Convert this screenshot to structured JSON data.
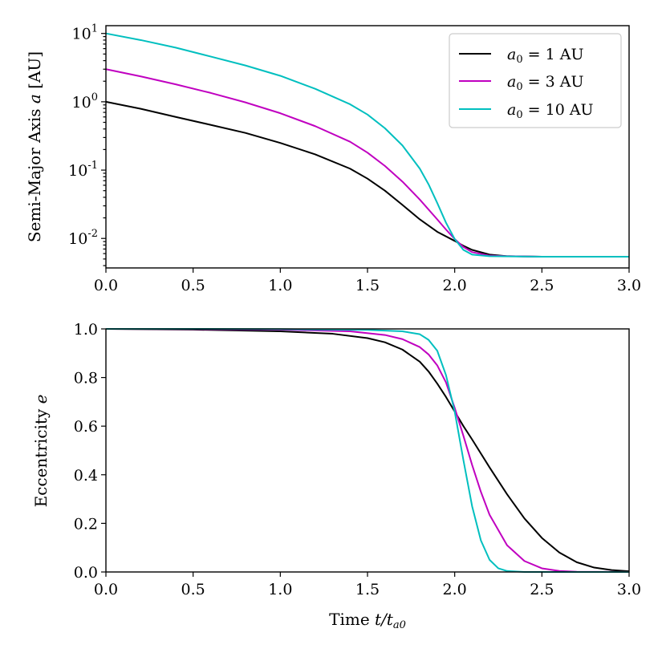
{
  "chart_data": [
    {
      "type": "line",
      "yscale": "log",
      "xlabel": "Time t/t_a0",
      "ylabel": "Semi-Major Axis a [AU]",
      "xlim": [
        0,
        3
      ],
      "ylim": [
        0.0037,
        13
      ],
      "xticks": [
        0.0,
        0.5,
        1.0,
        1.5,
        2.0,
        2.5,
        3.0
      ],
      "xtick_labels": [
        "0.0",
        "0.5",
        "1.0",
        "1.5",
        "2.0",
        "2.5",
        "3.0"
      ],
      "yticks": [
        10,
        1,
        0.1,
        0.01
      ],
      "ytick_base": [
        "10",
        "10",
        "10",
        "10"
      ],
      "ytick_exp": [
        "1",
        "0",
        "-1",
        "-2"
      ],
      "legend_position": "top-right",
      "series": [
        {
          "name": "a0 = 1 AU",
          "legend_var": "a",
          "legend_sub": "0",
          "legend_rest": " = 1 AU",
          "color": "#000000",
          "x": [
            0,
            0.2,
            0.4,
            0.6,
            0.8,
            1.0,
            1.2,
            1.4,
            1.5,
            1.6,
            1.7,
            1.8,
            1.9,
            2.0,
            2.05,
            2.1,
            2.2,
            2.3,
            2.5,
            3.0
          ],
          "y": [
            1.0,
            0.79,
            0.6,
            0.46,
            0.35,
            0.25,
            0.17,
            0.105,
            0.075,
            0.05,
            0.031,
            0.019,
            0.0125,
            0.0092,
            0.0078,
            0.0068,
            0.0058,
            0.0055,
            0.0054,
            0.0054
          ]
        },
        {
          "name": "a0 = 3 AU",
          "legend_var": "a",
          "legend_sub": "0",
          "legend_rest": " = 3 AU",
          "color": "#c000c0",
          "x": [
            0,
            0.2,
            0.4,
            0.6,
            0.8,
            1.0,
            1.2,
            1.4,
            1.5,
            1.6,
            1.7,
            1.8,
            1.9,
            1.95,
            2.0,
            2.05,
            2.1,
            2.2,
            2.3,
            2.5,
            3.0
          ],
          "y": [
            3.0,
            2.35,
            1.8,
            1.35,
            0.98,
            0.68,
            0.44,
            0.26,
            0.18,
            0.115,
            0.068,
            0.037,
            0.019,
            0.0135,
            0.0098,
            0.0075,
            0.0063,
            0.0056,
            0.0055,
            0.0054,
            0.0054
          ]
        },
        {
          "name": "a0 = 10 AU",
          "legend_var": "a",
          "legend_sub": "0",
          "legend_rest": " = 10 AU",
          "color": "#00bfbf",
          "x": [
            0,
            0.2,
            0.4,
            0.6,
            0.8,
            1.0,
            1.2,
            1.4,
            1.5,
            1.6,
            1.7,
            1.8,
            1.85,
            1.9,
            1.95,
            2.0,
            2.05,
            2.1,
            2.2,
            2.5,
            3.0
          ],
          "y": [
            10.0,
            8.0,
            6.2,
            4.6,
            3.4,
            2.4,
            1.55,
            0.92,
            0.65,
            0.41,
            0.23,
            0.105,
            0.062,
            0.033,
            0.017,
            0.0098,
            0.0068,
            0.0058,
            0.0055,
            0.0054,
            0.0054
          ]
        }
      ]
    },
    {
      "type": "line",
      "yscale": "linear",
      "xlabel": "Time t/t_a0",
      "ylabel": "Eccentricity e",
      "xlim": [
        0,
        3
      ],
      "ylim": [
        0,
        1
      ],
      "xticks": [
        0.0,
        0.5,
        1.0,
        1.5,
        2.0,
        2.5,
        3.0
      ],
      "xtick_labels": [
        "0.0",
        "0.5",
        "1.0",
        "1.5",
        "2.0",
        "2.5",
        "3.0"
      ],
      "yticks": [
        0.0,
        0.2,
        0.4,
        0.6,
        0.8,
        1.0
      ],
      "ytick_labels": [
        "0.0",
        "0.2",
        "0.4",
        "0.6",
        "0.8",
        "1.0"
      ],
      "series": [
        {
          "name": "a0 = 1 AU",
          "color": "#000000",
          "x": [
            0,
            0.5,
            1.0,
            1.3,
            1.5,
            1.6,
            1.7,
            1.8,
            1.85,
            1.9,
            1.95,
            2.0,
            2.05,
            2.1,
            2.2,
            2.3,
            2.4,
            2.5,
            2.6,
            2.7,
            2.8,
            2.9,
            3.0
          ],
          "y": [
            1.0,
            0.997,
            0.99,
            0.98,
            0.962,
            0.945,
            0.915,
            0.865,
            0.825,
            0.775,
            0.72,
            0.66,
            0.6,
            0.545,
            0.43,
            0.32,
            0.22,
            0.14,
            0.08,
            0.04,
            0.018,
            0.008,
            0.003
          ]
        },
        {
          "name": "a0 = 3 AU",
          "color": "#c000c0",
          "x": [
            0,
            0.5,
            1.0,
            1.4,
            1.6,
            1.7,
            1.8,
            1.85,
            1.9,
            1.95,
            2.0,
            2.05,
            2.1,
            2.15,
            2.2,
            2.3,
            2.4,
            2.5,
            2.6,
            2.7,
            3.0
          ],
          "y": [
            1.0,
            0.999,
            0.997,
            0.99,
            0.975,
            0.958,
            0.925,
            0.895,
            0.85,
            0.78,
            0.675,
            0.56,
            0.44,
            0.33,
            0.235,
            0.11,
            0.045,
            0.015,
            0.004,
            0.001,
            0.0
          ]
        },
        {
          "name": "a0 = 10 AU",
          "color": "#00bfbf",
          "x": [
            0,
            0.5,
            1.0,
            1.5,
            1.7,
            1.8,
            1.85,
            1.9,
            1.95,
            2.0,
            2.05,
            2.1,
            2.15,
            2.2,
            2.25,
            2.3,
            2.4,
            3.0
          ],
          "y": [
            1.0,
            1.0,
            0.999,
            0.996,
            0.99,
            0.978,
            0.955,
            0.91,
            0.81,
            0.66,
            0.46,
            0.27,
            0.13,
            0.05,
            0.015,
            0.004,
            0.0,
            0.0
          ]
        }
      ]
    }
  ],
  "labels": {
    "top_ylabel_text": "Semi-Major Axis ",
    "top_ylabel_var": "a",
    "top_ylabel_unit": " [AU]",
    "bottom_ylabel_text": "Eccentricity ",
    "bottom_ylabel_var": "e",
    "xlabel_text": "Time ",
    "xlabel_var": "t/t",
    "xlabel_sub": "a0"
  }
}
